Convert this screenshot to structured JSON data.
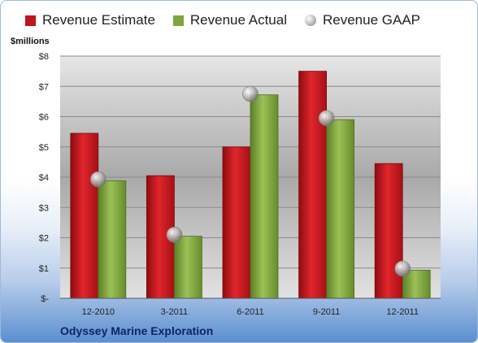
{
  "legend": {
    "estimate": "Revenue Estimate",
    "actual": "Revenue Actual",
    "gaap": "Revenue GAAP"
  },
  "units_label": "$millions",
  "company": "Odyssey Marine Exploration",
  "colors": {
    "estimate": "#c0151b",
    "actual": "#7fa63b",
    "gaap": "#a8a8a8"
  },
  "chart_data": {
    "type": "bar",
    "categories": [
      "12-2010",
      "3-2011",
      "6-2011",
      "9-2011",
      "12-2011"
    ],
    "series": [
      {
        "name": "Revenue Estimate",
        "kind": "bar",
        "values": [
          5.45,
          4.05,
          5.0,
          7.5,
          4.45
        ]
      },
      {
        "name": "Revenue Actual",
        "kind": "bar",
        "values": [
          3.88,
          2.05,
          6.72,
          5.9,
          0.93
        ]
      },
      {
        "name": "Revenue GAAP",
        "kind": "marker",
        "values": [
          3.93,
          2.1,
          6.75,
          5.95,
          0.98
        ]
      }
    ],
    "ylabel": "$millions",
    "ylim": [
      0,
      8
    ],
    "yticks": [
      "$-",
      "$1",
      "$2",
      "$3",
      "$4",
      "$5",
      "$6",
      "$7",
      "$8"
    ],
    "grid": true,
    "legend_position": "top"
  }
}
